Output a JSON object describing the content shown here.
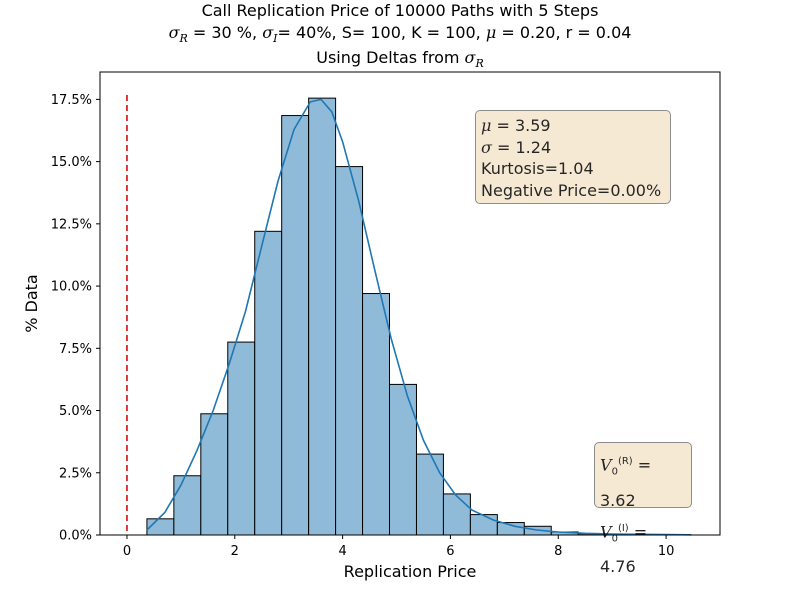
{
  "chart_data": {
    "type": "bar",
    "title": "Call Replication Price of 10000 Paths with 5 Steps",
    "subtitle_parts": {
      "sigma_r": "30 %",
      "sigma_i": "40%",
      "rest": "S= 100, K = 100,",
      "mu": "0.20",
      "r": "r = 0.04"
    },
    "subtitle2": "Using Deltas from",
    "xlabel": "Replication Price",
    "ylabel": "% Data",
    "xlim": [
      -0.5,
      11.0
    ],
    "ylim": [
      0,
      18.6
    ],
    "x_ticks": [
      0,
      2,
      4,
      6,
      8,
      10
    ],
    "y_ticks": [
      0,
      2.5,
      5.0,
      7.5,
      10.0,
      12.5,
      15.0,
      17.5
    ],
    "y_tick_labels": [
      "0.0%",
      "2.5%",
      "5.0%",
      "7.5%",
      "10.0%",
      "12.5%",
      "15.0%",
      "17.5%"
    ],
    "bin_edges": [
      0.37,
      0.87,
      1.37,
      1.87,
      2.37,
      2.87,
      3.37,
      3.87,
      4.37,
      4.87,
      5.37,
      5.87,
      6.37,
      6.87,
      7.37,
      7.87,
      8.37,
      8.87,
      9.37,
      9.87,
      10.37
    ],
    "values": [
      0.65,
      2.38,
      4.87,
      7.75,
      12.2,
      16.85,
      17.55,
      14.8,
      9.7,
      6.05,
      3.25,
      1.65,
      0.82,
      0.5,
      0.35,
      0.12,
      0.05,
      0.02,
      0.02,
      0.02
    ],
    "kde": {
      "x": [
        0.37,
        0.7,
        1.0,
        1.3,
        1.6,
        1.9,
        2.2,
        2.5,
        2.8,
        3.1,
        3.4,
        3.6,
        3.8,
        4.0,
        4.3,
        4.6,
        4.9,
        5.2,
        5.5,
        5.8,
        6.1,
        6.4,
        6.8,
        7.2,
        7.6,
        8.0,
        8.5,
        9.0,
        9.5,
        10.0,
        10.47
      ],
      "y": [
        0.2,
        0.9,
        2.0,
        3.4,
        5.0,
        6.9,
        9.0,
        11.6,
        14.2,
        16.3,
        17.4,
        17.5,
        17.0,
        15.8,
        13.4,
        10.6,
        7.9,
        5.6,
        3.8,
        2.5,
        1.6,
        1.0,
        0.6,
        0.35,
        0.2,
        0.12,
        0.07,
        0.04,
        0.03,
        0.02,
        0.01
      ]
    },
    "vline_x": 0,
    "vline_color": "#d62728",
    "bar_color": "#8fbbd9",
    "kde_color": "#1f77b4",
    "grid": false,
    "stats_box": {
      "mu": "3.59",
      "sigma": "1.24",
      "kurtosis": "Kurtosis=1.04",
      "negative": "Negative Price=0.00%"
    },
    "value_box": {
      "v_r": "3.62",
      "v_i": "4.76"
    }
  }
}
